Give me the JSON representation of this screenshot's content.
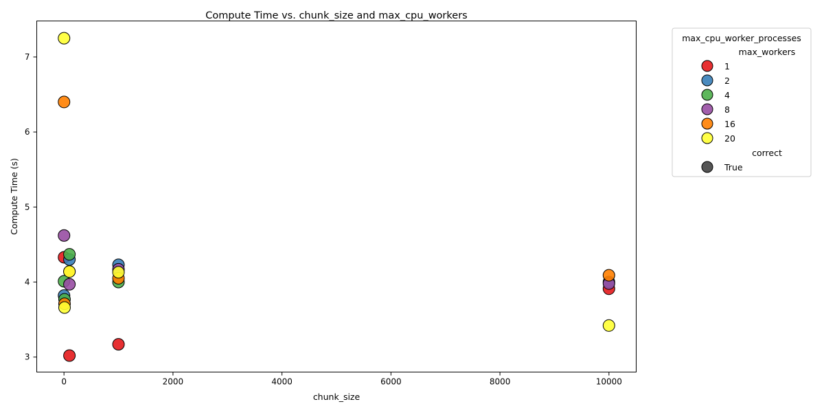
{
  "chart_data": {
    "type": "scatter",
    "title": "Compute Time vs. chunk_size and max_cpu_workers",
    "xlabel": "chunk_size",
    "ylabel": "Compute Time (s)",
    "xlim": [
      -500,
      10500
    ],
    "ylim": [
      2.8,
      7.48
    ],
    "xticks": [
      0,
      2000,
      4000,
      6000,
      8000,
      10000
    ],
    "xtick_labels": [
      "0",
      "2000",
      "4000",
      "6000",
      "8000",
      "10000"
    ],
    "yticks": [
      3,
      4,
      5,
      6,
      7
    ],
    "ytick_labels": [
      "3",
      "4",
      "5",
      "6",
      "7"
    ],
    "grid": false,
    "legend": {
      "placement": "outside-upper-right",
      "title": "max_cpu_worker_processes",
      "hue_title": "max_workers",
      "style_title": "correct",
      "style_entries": [
        {
          "label": "True",
          "color": "#555555"
        }
      ]
    },
    "series": [
      {
        "name": "1",
        "color": "#e41a1c",
        "points": [
          [
            1,
            4.33
          ],
          [
            100,
            3.02
          ],
          [
            1000,
            3.17
          ],
          [
            10000,
            3.91
          ]
        ]
      },
      {
        "name": "2",
        "color": "#377eb8",
        "points": [
          [
            1,
            3.82
          ],
          [
            100,
            4.3
          ],
          [
            1000,
            4.23
          ],
          [
            10000,
            4.0
          ]
        ]
      },
      {
        "name": "4",
        "color": "#4daf4a",
        "points": [
          [
            1,
            4.01
          ],
          [
            10,
            3.77
          ],
          [
            100,
            4.37
          ],
          [
            1000,
            4.0
          ]
        ]
      },
      {
        "name": "8",
        "color": "#984ea3",
        "points": [
          [
            1,
            4.62
          ],
          [
            100,
            3.97
          ],
          [
            1000,
            4.17
          ],
          [
            10000,
            3.98
          ]
        ]
      },
      {
        "name": "16",
        "color": "#ff7f00",
        "points": [
          [
            1,
            6.4
          ],
          [
            10,
            3.71
          ],
          [
            100,
            4.14
          ],
          [
            1000,
            4.05
          ],
          [
            10000,
            4.09
          ]
        ]
      },
      {
        "name": "20",
        "color": "#ffff33",
        "points": [
          [
            1,
            7.25
          ],
          [
            10,
            3.66
          ],
          [
            100,
            4.14
          ],
          [
            1000,
            4.13
          ],
          [
            10000,
            3.42
          ]
        ]
      }
    ]
  }
}
